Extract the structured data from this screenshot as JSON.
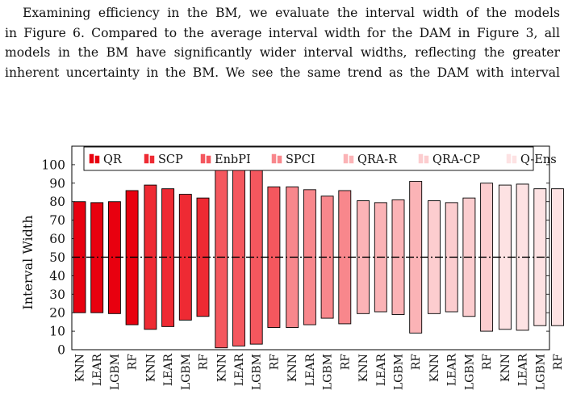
{
  "paragraph": {
    "lines": [
      "Examining efficiency in the BM, we evaluate the interval width of the models",
      "in Figure 6. Compared to the average interval width for the DAM in Figure 3, all",
      "models in the BM have significantly wider interval widths, reflecting the greater",
      "inherent uncertainty in the BM. We see the same trend as the DAM with interval"
    ]
  },
  "chart_data": {
    "type": "bar",
    "ylabel": "Interval Width",
    "ylim": [
      0,
      110
    ],
    "yticks": [
      0,
      10,
      20,
      30,
      40,
      50,
      60,
      70,
      80,
      90,
      100
    ],
    "grid": false,
    "legend_position": "top",
    "reference_line": 50,
    "groups": [
      {
        "name": "QR",
        "color": "#e8000f",
        "bars": [
          {
            "label": "KNN",
            "low": 20,
            "high": 80
          },
          {
            "label": "LEAR",
            "low": 20,
            "high": 79.5
          },
          {
            "label": "LGBM",
            "low": 19.5,
            "high": 80
          },
          {
            "label": "RF",
            "low": 13.5,
            "high": 86
          }
        ]
      },
      {
        "name": "SCP",
        "color": "#ee2a33",
        "bars": [
          {
            "label": "KNN",
            "low": 11,
            "high": 89
          },
          {
            "label": "LEAR",
            "low": 12.5,
            "high": 87
          },
          {
            "label": "LGBM",
            "low": 16,
            "high": 84
          },
          {
            "label": "RF",
            "low": 18,
            "high": 82
          }
        ]
      },
      {
        "name": "EnbPI",
        "color": "#f4575e",
        "bars": [
          {
            "label": "KNN",
            "low": 1,
            "high": 99
          },
          {
            "label": "LEAR",
            "low": 2,
            "high": 98
          },
          {
            "label": "LGBM",
            "low": 3,
            "high": 97
          },
          {
            "label": "RF",
            "low": 12,
            "high": 88
          }
        ]
      },
      {
        "name": "SPCI",
        "color": "#f8878c",
        "bars": [
          {
            "label": "KNN",
            "low": 12,
            "high": 88
          },
          {
            "label": "LEAR",
            "low": 13.5,
            "high": 86.5
          },
          {
            "label": "LGBM",
            "low": 17,
            "high": 83
          },
          {
            "label": "RF",
            "low": 14,
            "high": 86
          }
        ]
      },
      {
        "name": "QRA-R",
        "color": "#fbb3b6",
        "bars": [
          {
            "label": "KNN",
            "low": 19.5,
            "high": 80.5
          },
          {
            "label": "LEAR",
            "low": 20.5,
            "high": 79.5
          },
          {
            "label": "LGBM",
            "low": 19,
            "high": 81
          },
          {
            "label": "RF",
            "low": 9,
            "high": 91
          }
        ]
      },
      {
        "name": "QRA-CP",
        "color": "#fccdcf",
        "bars": [
          {
            "label": "KNN",
            "low": 19.5,
            "high": 80.5
          },
          {
            "label": "LEAR",
            "low": 20.5,
            "high": 79.5
          },
          {
            "label": "LGBM",
            "low": 18,
            "high": 82
          },
          {
            "label": "RF",
            "low": 10,
            "high": 90
          }
        ]
      },
      {
        "name": "Q-Ens",
        "color": "#fde2e3",
        "bars": [
          {
            "label": "KNN",
            "low": 11,
            "high": 89
          },
          {
            "label": "LEAR",
            "low": 10.5,
            "high": 89.5
          },
          {
            "label": "LGBM",
            "low": 13,
            "high": 87
          },
          {
            "label": "RF",
            "low": 13,
            "high": 87
          }
        ]
      }
    ]
  }
}
